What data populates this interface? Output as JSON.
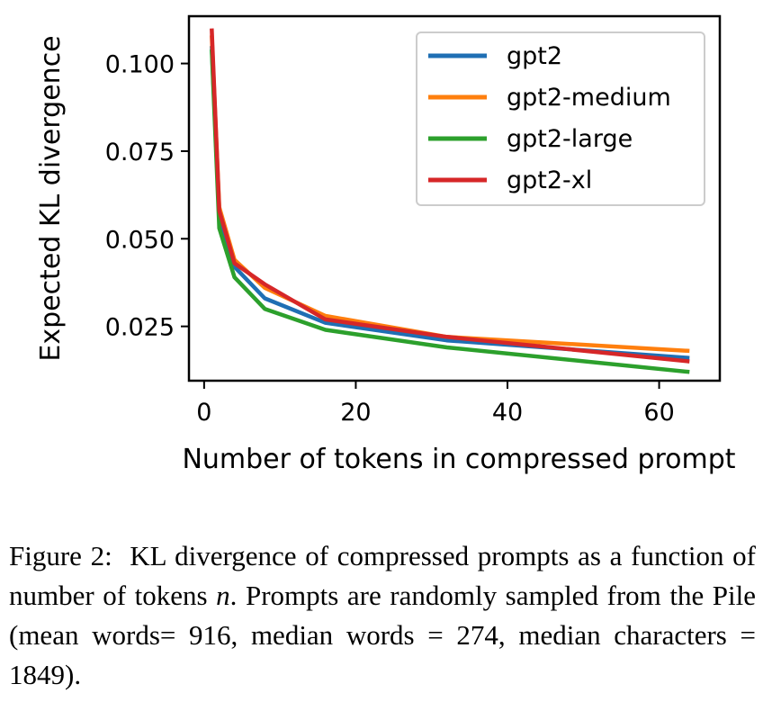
{
  "chart_data": {
    "type": "line",
    "xlabel": "Number of tokens in compressed prompt",
    "ylabel": "Expected KL divergence",
    "xlim": [
      -2,
      68
    ],
    "ylim": [
      0.0095,
      0.1135
    ],
    "xticks": [
      0,
      20,
      40,
      60
    ],
    "xtick_labels": [
      "0",
      "20",
      "40",
      "60"
    ],
    "yticks": [
      0.025,
      0.05,
      0.075,
      0.1
    ],
    "ytick_labels": [
      "0.025",
      "0.050",
      "0.075",
      "0.100"
    ],
    "grid": false,
    "legend_position": "top-right",
    "x": [
      1,
      2,
      4,
      8,
      16,
      32,
      64
    ],
    "series": [
      {
        "name": "gpt2",
        "color": "#1f6fb4",
        "values": [
          0.105,
          0.056,
          0.042,
          0.033,
          0.026,
          0.021,
          0.016
        ]
      },
      {
        "name": "gpt2-medium",
        "color": "#ff7f0e",
        "values": [
          0.108,
          0.059,
          0.044,
          0.036,
          0.028,
          0.022,
          0.018
        ]
      },
      {
        "name": "gpt2-large",
        "color": "#2ca02c",
        "values": [
          0.104,
          0.053,
          0.039,
          0.03,
          0.024,
          0.019,
          0.012
        ]
      },
      {
        "name": "gpt2-xl",
        "color": "#d62728",
        "values": [
          0.11,
          0.058,
          0.043,
          0.037,
          0.027,
          0.022,
          0.015
        ]
      }
    ]
  },
  "caption": {
    "label": "Figure 2:",
    "text_before": "KL divergence of compressed prompts as a function of number of tokens",
    "variable": "n",
    "text_after": ". Prompts are randomly sampled from the Pile (mean words= 916, median words = 274, median characters = 1849)."
  }
}
